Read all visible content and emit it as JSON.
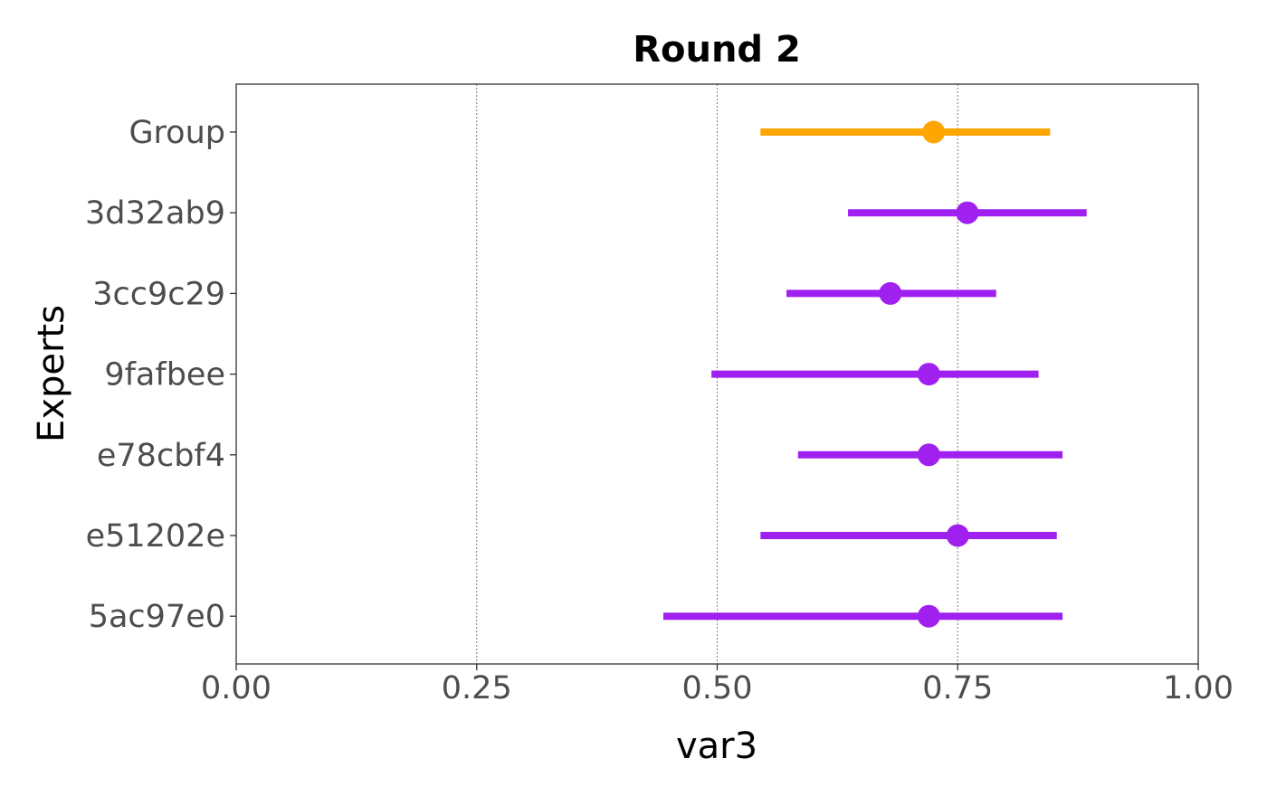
{
  "chart_data": {
    "type": "scatter",
    "title": "Round 2",
    "xlabel": "var3",
    "ylabel": "Experts",
    "xlim": [
      0,
      1
    ],
    "x_ticks": [
      "0.00",
      "0.25",
      "0.50",
      "0.75",
      "1.00"
    ],
    "x_tick_values": [
      0,
      0.25,
      0.5,
      0.75,
      1.0
    ],
    "grid": "vertical dotted at major x ticks",
    "categories": [
      "Group",
      "3d32ab9",
      "3cc9c29",
      "9fafbee",
      "e78cbf4",
      "e51202e",
      "5ac97e0"
    ],
    "series": [
      {
        "name": "",
        "color": "#ffa500",
        "points": [
          {
            "category": "Group",
            "low": 0.545,
            "estimate": 0.725,
            "high": 0.846
          }
        ]
      },
      {
        "name": "",
        "color": "#a020f0",
        "points": [
          {
            "category": "3d32ab9",
            "low": 0.636,
            "estimate": 0.76,
            "high": 0.884
          },
          {
            "category": "3cc9c29",
            "low": 0.572,
            "estimate": 0.68,
            "high": 0.79
          },
          {
            "category": "9fafbee",
            "low": 0.494,
            "estimate": 0.72,
            "high": 0.834
          },
          {
            "category": "e78cbf4",
            "low": 0.584,
            "estimate": 0.72,
            "high": 0.859
          },
          {
            "category": "e51202e",
            "low": 0.545,
            "estimate": 0.75,
            "high": 0.853
          },
          {
            "category": "5ac97e0",
            "low": 0.444,
            "estimate": 0.72,
            "high": 0.859
          }
        ]
      }
    ]
  }
}
